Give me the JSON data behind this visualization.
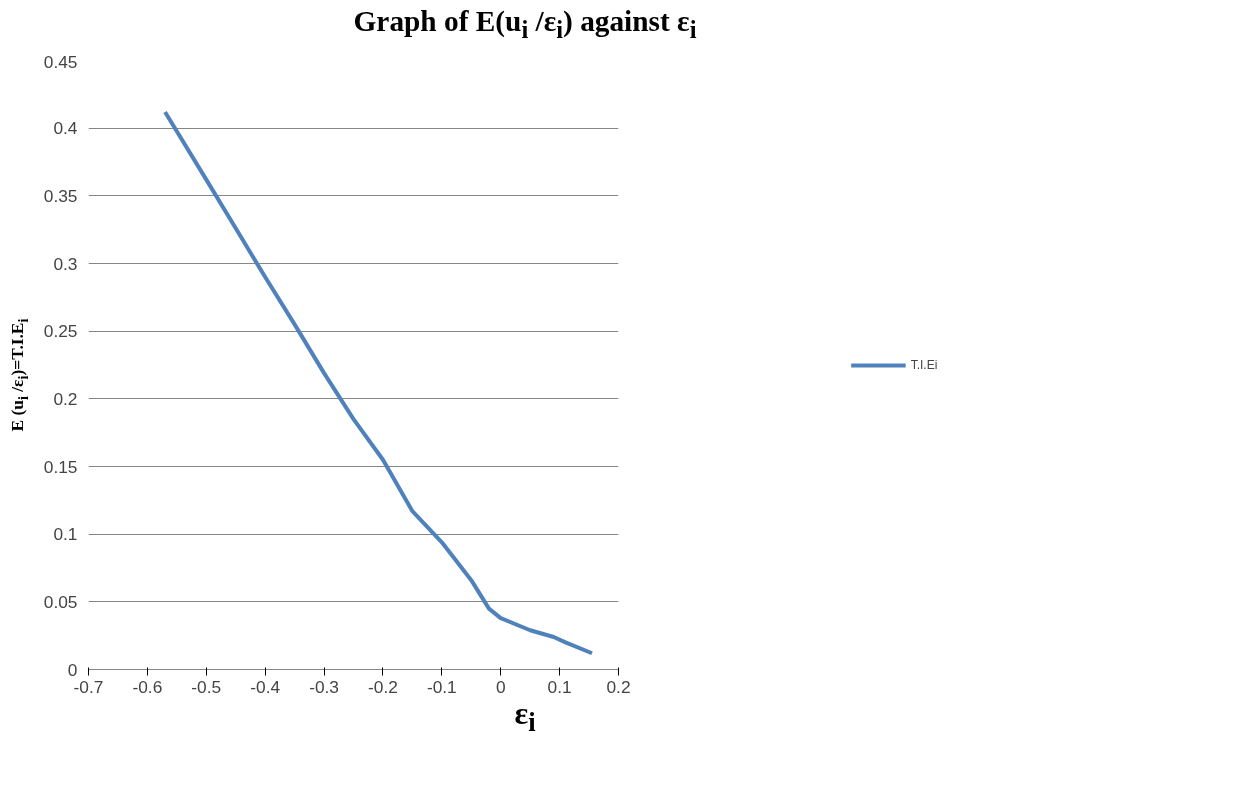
{
  "chart_data": {
    "type": "line",
    "title": "Graph of E(u$_{i}$ /ε$_{i}$) against ε$_{i}$",
    "xlabel": "ε$_{i}$",
    "ylabel": "E (u$_{i}$ /ε$_{i}$)=T.I.E$_{i}$",
    "x": [
      -0.57,
      -0.5,
      -0.45,
      -0.4,
      -0.35,
      -0.3,
      -0.25,
      -0.2,
      -0.15,
      -0.1,
      -0.05,
      -0.02,
      0,
      0.05,
      0.09,
      0.11,
      0.155
    ],
    "series": [
      {
        "name": "T.I.Ei",
        "color": "#4f81bd",
        "values": [
          0.412,
          0.362,
          0.326,
          0.29,
          0.255,
          0.219,
          0.185,
          0.155,
          0.117,
          0.094,
          0.066,
          0.045,
          0.038,
          0.029,
          0.024,
          0.02,
          0.012
        ]
      }
    ],
    "xlim": [
      -0.7,
      0.2
    ],
    "ylim": [
      0,
      0.45
    ],
    "xticks": [
      -0.7,
      -0.6,
      -0.5,
      -0.4,
      -0.3,
      -0.2,
      -0.1,
      0,
      0.1,
      0.2
    ],
    "yticks": [
      0,
      0.05,
      0.1,
      0.15,
      0.2,
      0.25,
      0.3,
      0.35,
      0.4,
      0.45
    ],
    "grid": "y",
    "legend": "right",
    "marker": "none",
    "line_style": "solid"
  }
}
